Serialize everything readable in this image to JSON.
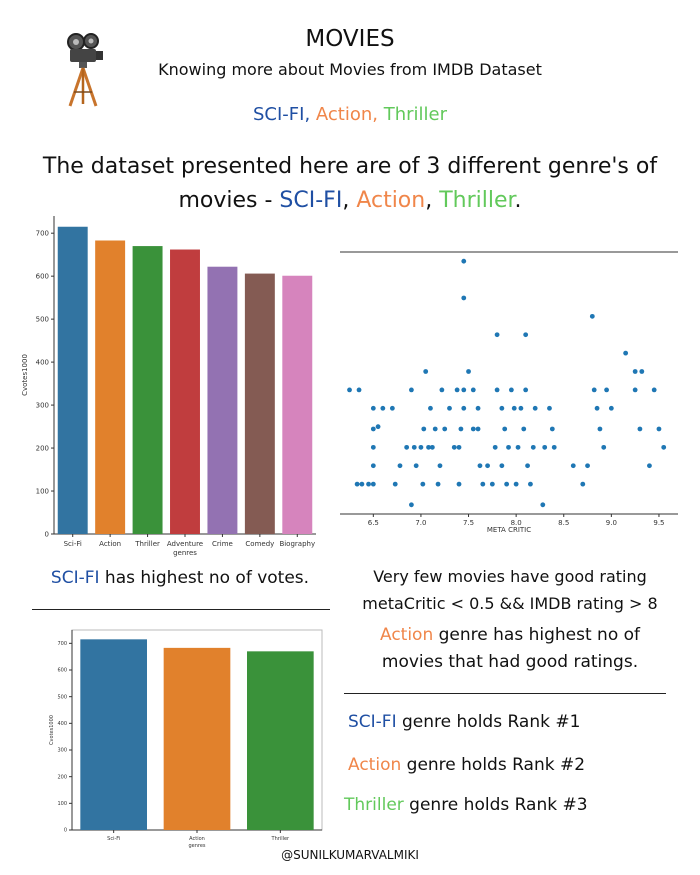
{
  "header": {
    "title": "MOVIES",
    "subtitle": "Knowing more about Movies from IMDB Dataset",
    "genre_line": {
      "g1": "SCI-FI",
      "sep1": ", ",
      "g2": "Action",
      "sep2": ",  ",
      "g3": "Thriller"
    }
  },
  "description": {
    "line1": "The dataset  presented here are of 3 different genre's of",
    "line2_prefix": "movies -  ",
    "g1": "SCI-FI",
    "sep1": ", ",
    "g2": "Action",
    "sep2": ", ",
    "g3": "Thriller",
    "end": "."
  },
  "notes": {
    "votes": {
      "genre": "SCI-FI",
      "text": " has highest no of votes."
    },
    "rating_line1": "Very few movies have good rating",
    "rating_line2": "metaCritic < 0.5 && IMDB rating > 8",
    "action_genre": "Action",
    "action_text1": " genre has highest no of",
    "action_text2": "movies that had good ratings.",
    "rank1": {
      "genre": "SCI-FI",
      "text": " genre holds Rank #1"
    },
    "rank2": {
      "genre": "Action",
      "text": " genre holds Rank #2"
    },
    "rank3": {
      "genre": "Thriller",
      "text": " genre holds Rank #3"
    }
  },
  "footer": {
    "credit": "@SUNILKUMARVALMIKI"
  },
  "colors": {
    "scifi": "#1f4fa3",
    "action": "#f0864a",
    "thriller": "#62c95b"
  },
  "chart_data": [
    {
      "type": "bar",
      "categories": [
        "Sci-Fi",
        "Action",
        "Thriller",
        "Adventure",
        "Crime",
        "Comedy",
        "Biography"
      ],
      "values": [
        715,
        683,
        670,
        662,
        622,
        606,
        601
      ],
      "colors": [
        "#3274a1",
        "#e1812c",
        "#3a923a",
        "#c03d3e",
        "#9372b2",
        "#845b53",
        "#d684bd"
      ],
      "xlabel": "genres",
      "ylabel": "Cvotes1000",
      "ylim": [
        0,
        740
      ],
      "yticks": [
        0,
        100,
        200,
        300,
        400,
        500,
        600,
        700
      ]
    },
    {
      "type": "scatter",
      "xlabel": "META CRITIC",
      "ylabel": "",
      "xlim": [
        6.15,
        9.7
      ],
      "ylim": [
        70,
        640
      ],
      "xticks": [
        "6.5",
        "7.0",
        "7.5",
        "8.0",
        "8.5",
        "9.0",
        "9.5"
      ],
      "points": [
        [
          6.25,
          340
        ],
        [
          6.35,
          340
        ],
        [
          6.33,
          135
        ],
        [
          6.38,
          135
        ],
        [
          6.45,
          135
        ],
        [
          6.5,
          135
        ],
        [
          6.5,
          175
        ],
        [
          6.5,
          215
        ],
        [
          6.5,
          255
        ],
        [
          6.5,
          300
        ],
        [
          6.55,
          260
        ],
        [
          6.6,
          300
        ],
        [
          6.7,
          300
        ],
        [
          6.73,
          135
        ],
        [
          6.78,
          175
        ],
        [
          6.85,
          215
        ],
        [
          6.9,
          90
        ],
        [
          6.9,
          340
        ],
        [
          6.93,
          215
        ],
        [
          6.95,
          175
        ],
        [
          7.0,
          215
        ],
        [
          7.02,
          135
        ],
        [
          7.03,
          255
        ],
        [
          7.08,
          215
        ],
        [
          7.05,
          380
        ],
        [
          7.1,
          300
        ],
        [
          7.15,
          255
        ],
        [
          7.12,
          215
        ],
        [
          7.18,
          135
        ],
        [
          7.2,
          175
        ],
        [
          7.22,
          340
        ],
        [
          7.25,
          255
        ],
        [
          7.3,
          300
        ],
        [
          7.35,
          215
        ],
        [
          7.38,
          340
        ],
        [
          7.4,
          135
        ],
        [
          7.4,
          215
        ],
        [
          7.42,
          255
        ],
        [
          7.45,
          540
        ],
        [
          7.45,
          620
        ],
        [
          7.45,
          300
        ],
        [
          7.45,
          340
        ],
        [
          7.5,
          380
        ],
        [
          7.55,
          340
        ],
        [
          7.55,
          255
        ],
        [
          7.6,
          300
        ],
        [
          7.62,
          175
        ],
        [
          7.6,
          255
        ],
        [
          7.65,
          135
        ],
        [
          7.7,
          175
        ],
        [
          7.75,
          135
        ],
        [
          7.78,
          215
        ],
        [
          7.8,
          460
        ],
        [
          7.8,
          340
        ],
        [
          7.85,
          300
        ],
        [
          7.85,
          175
        ],
        [
          7.88,
          255
        ],
        [
          7.9,
          135
        ],
        [
          7.92,
          215
        ],
        [
          7.95,
          340
        ],
        [
          7.98,
          300
        ],
        [
          8.0,
          135
        ],
        [
          8.02,
          215
        ],
        [
          8.05,
          300
        ],
        [
          8.08,
          255
        ],
        [
          8.1,
          460
        ],
        [
          8.1,
          340
        ],
        [
          8.12,
          175
        ],
        [
          8.15,
          135
        ],
        [
          8.18,
          215
        ],
        [
          8.2,
          300
        ],
        [
          8.28,
          90
        ],
        [
          8.3,
          215
        ],
        [
          8.35,
          300
        ],
        [
          8.4,
          215
        ],
        [
          8.38,
          255
        ],
        [
          8.6,
          175
        ],
        [
          8.7,
          135
        ],
        [
          8.75,
          175
        ],
        [
          8.8,
          500
        ],
        [
          8.82,
          340
        ],
        [
          8.85,
          300
        ],
        [
          8.88,
          255
        ],
        [
          8.92,
          215
        ],
        [
          8.95,
          340
        ],
        [
          9.0,
          300
        ],
        [
          9.15,
          420
        ],
        [
          9.25,
          340
        ],
        [
          9.25,
          380
        ],
        [
          9.3,
          255
        ],
        [
          9.32,
          380
        ],
        [
          9.4,
          175
        ],
        [
          9.45,
          340
        ],
        [
          9.5,
          255
        ],
        [
          9.55,
          215
        ]
      ]
    },
    {
      "type": "bar",
      "categories": [
        "Sci-Fi",
        "Action",
        "Thriller"
      ],
      "values": [
        715,
        683,
        670
      ],
      "colors": [
        "#3274a1",
        "#e1812c",
        "#3a923a"
      ],
      "xlabel": "genres",
      "ylabel": "Cvotes1000",
      "ylim": [
        0,
        750
      ],
      "yticks": [
        0,
        100,
        200,
        300,
        400,
        500,
        600,
        700
      ]
    }
  ]
}
